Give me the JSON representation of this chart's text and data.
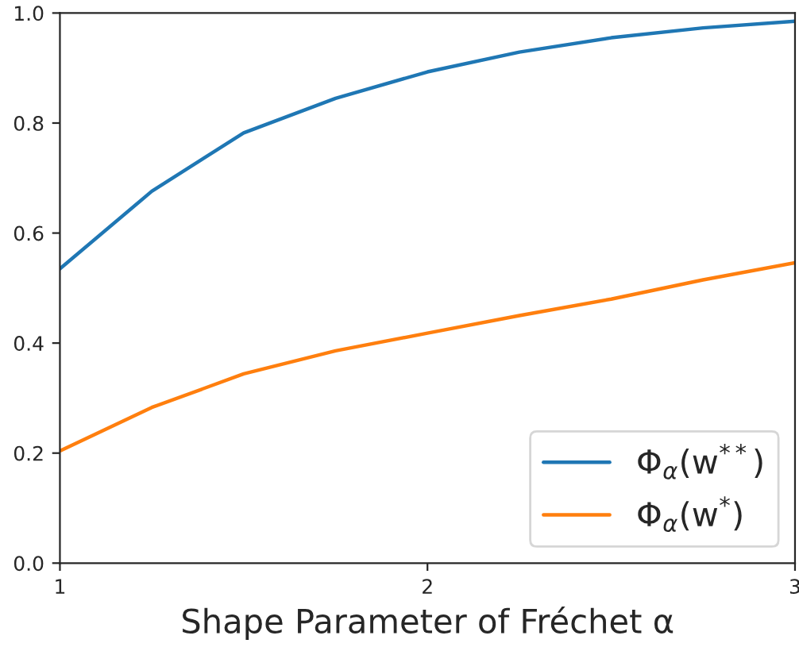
{
  "chart_data": {
    "type": "line",
    "xlabel": "Shape Parameter of Fréchet α",
    "x": [
      1,
      1.25,
      1.5,
      1.75,
      2,
      2.25,
      2.5,
      2.75,
      3
    ],
    "series": [
      {
        "name": "Φ$_{α}$(w$^{**}$)",
        "color": "#1f77b4",
        "values": [
          0.535,
          0.676,
          0.782,
          0.845,
          0.893,
          0.929,
          0.955,
          0.973,
          0.985
        ]
      },
      {
        "name": "Φ$_{α}$(w$^{*}$)",
        "color": "#ff7f0e",
        "values": [
          0.204,
          0.283,
          0.344,
          0.386,
          0.418,
          0.45,
          0.48,
          0.515,
          0.546
        ]
      }
    ],
    "xlim": [
      1,
      3
    ],
    "xticks": [
      1,
      2,
      3
    ],
    "ylim": [
      0,
      1
    ],
    "yticks": [
      {
        "value": 0,
        "label": "0.0"
      },
      {
        "value": 0.2,
        "label": "0.2"
      },
      {
        "value": 0.4,
        "label": "0.4"
      },
      {
        "value": 0.6,
        "label": "0.6"
      },
      {
        "value": 0.8,
        "label": "0.8"
      },
      {
        "value": 1,
        "label": "1.0"
      }
    ],
    "legend": "lower right",
    "grid": false
  }
}
